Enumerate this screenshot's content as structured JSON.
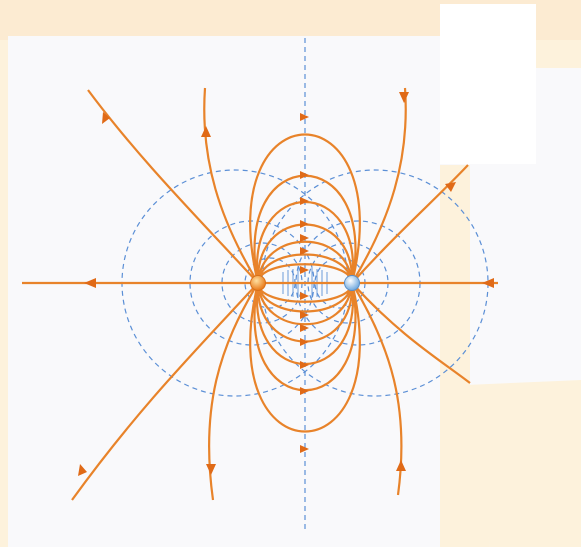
{
  "diagram": {
    "kind": "electric dipole field lines with equipotential surfaces",
    "colors": {
      "background": "#fdf2dc",
      "figure_panel": "#f9f9fb",
      "white_patch": "#ffffff",
      "field_line": "#e8832a",
      "arrow": "#e06a17",
      "equipotential": "#5b8fd6",
      "positive_charge": "#f08a23",
      "negative_charge": "#9cc8f2"
    },
    "charges": [
      {
        "name": "positive-charge",
        "sign": "+"
      },
      {
        "name": "negative-charge",
        "sign": "-"
      }
    ],
    "icons": [
      "arrow-icon"
    ]
  }
}
